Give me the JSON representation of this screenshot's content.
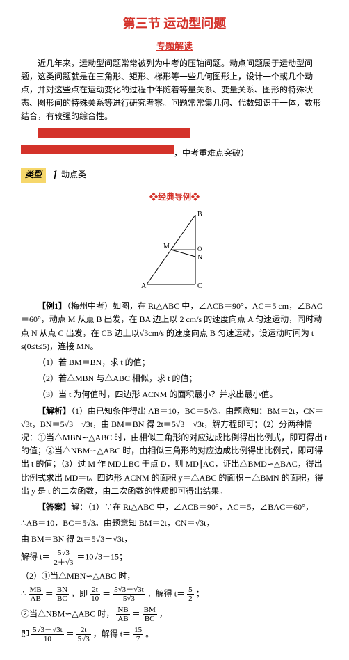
{
  "colors": {
    "red": "#d4322a",
    "yellow_bar": "#f6d76b",
    "text": "#000000",
    "bg": "#ffffff"
  },
  "title": "第三节  运动型问题",
  "section_header": "专题解读",
  "red_bar_width_1": 220,
  "red_bar_width_2": 220,
  "intro_para": "近几年来，运动型问题常常被列为中考的压轴问题。动点问题属于运动型问题，这类问题就是在三角形、矩形、梯形等一些几何图形上，设计一个或几个动点，并对这些点在运动变化的过程中伴随着等量关系、变量关系、图形的特殊状态、图形间的特殊关系等进行研究考察。问题常常集几何、代数知识于一体，数形结合，有较强的综合性。",
  "after_bar_text": "，中考重难点突破）",
  "type_label": "类型",
  "type_num": "1",
  "type_name": "动点类",
  "example_header": "经典导例",
  "diagram_labels": {
    "B": "B",
    "M": "M",
    "N": "N",
    "A": "A",
    "C": "C",
    "O": "O"
  },
  "example_tag": "【例1】",
  "example_src": "（梅州中考）",
  "example_body_1": "如图，在 Rt△ABC 中，∠ACB＝90°，AC＝5 cm，∠BAC＝60°，动点 M 从点 B 出发，在 BA 边上以 2 cm/s 的速度向点 A 匀速运动，同时动点 N 从点 C 出发，在 CB 边上以√3cm/s 的速度向点 B 匀速运动，设运动时间为 t s(0≤t≤5)，连接 MN。",
  "q1": "（1）若 BM＝BN，求 t 的值；",
  "q2": "（2）若△MBN 与△ABC 相似，求 t 的值；",
  "q3": "（3）当 t 为何值时，四边形 ACNM 的面积最小？并求出最小值。",
  "analysis_tag": "【解析】",
  "analysis_body": "（1）由已知条件得出 AB＝10，BC＝5√3。由题意知：BM＝2t，CN＝√3t，BN＝5√3－√3t，由 BM＝BN 得 2t＝5√3－√3t，解方程即可；（2）分两种情况：①当△MBN∽△ABC 时，由相似三角形的对应边成比例得出比例式，即可得出 t 的值；②当△NBM∽△ABC 时，由相似三角形的对应边成比例得出比例式，即可得出 t 的值；（3）过 M 作 MD⊥BC 于点 D，则 MD∥AC，证出△BMD∽△BAC，得出比例式求出 MD＝t。四边形 ACNM 的面积 y＝△ABC 的面积－△BMN 的面积，得出 y 是 t 的二次函数，由二次函数的性质即可得出结果。",
  "answer_tag": "【答案】",
  "answer_l1": "解：（1）∵在 Rt△ABC 中，∠ACB＝90°，AC＝5，∠BAC＝60°，",
  "answer_l2": "∴AB＝10，BC＝5√3。由题意知 BM＝2t，CN＝√3t，",
  "answer_l3": "由 BM＝BN 得 2t＝5√3－√3t，",
  "answer_solveA_pre": "解得 t＝",
  "answer_solveA_num": "5√3",
  "answer_solveA_den": "2＋√3",
  "answer_solveA_post": "＝10√3－15；",
  "answer_2_header": "（2）①当△MBN∽△ABC 时，",
  "ratio1_l": "MB",
  "ratio1_ld": "AB",
  "ratio1_r": "BN",
  "ratio1_rd": "BC",
  "ratio1_mid": "，即",
  "ratio1_v_num1": "2t",
  "ratio1_v_den1": "10",
  "ratio1_v_num2": "5√3－√3t",
  "ratio1_v_den2": "5√3",
  "ratio1_res_pre": "，解得 t＝",
  "ratio1_res_num": "5",
  "ratio1_res_den": "2",
  "answer_2b": "②当△NBM∽△ABC 时，",
  "ratio2_l": "NB",
  "ratio2_ld": "AB",
  "ratio2_r": "BM",
  "ratio2_rd": "BC",
  "ratio2_v_num1": "5√3－√3t",
  "ratio2_v_den1": "10",
  "ratio2_v_num2": "2t",
  "ratio2_v_den2": "5√3",
  "ratio2_res_pre": "，解得 t＝",
  "ratio2_res_num": "15",
  "ratio2_res_den": "7",
  "period": "；",
  "period2": "。"
}
